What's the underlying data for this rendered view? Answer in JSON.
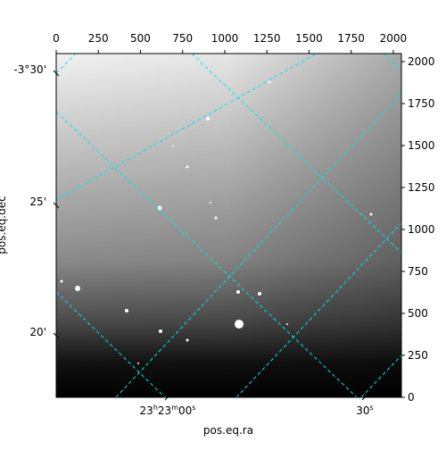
{
  "chart_data": {
    "type": "image",
    "xlabel": "pos.eq.ra",
    "ylabel": "pos.eq.dec",
    "xlim": [
      0,
      2048
    ],
    "ylim": [
      0,
      2048
    ],
    "xticks": [
      0,
      250,
      500,
      750,
      1000,
      1250,
      1500,
      1750,
      2000
    ],
    "yticks": [
      0,
      250,
      500,
      750,
      1000,
      1250,
      1500,
      1750,
      2000
    ],
    "dec_tick_labels": [
      "-3°30'",
      "25'",
      "20'"
    ],
    "ra_tick_labels": [
      [
        "23",
        "h",
        "23",
        "m",
        "00",
        "s"
      ],
      [
        "30",
        "s"
      ]
    ],
    "grid_color": "#00e5e5"
  }
}
